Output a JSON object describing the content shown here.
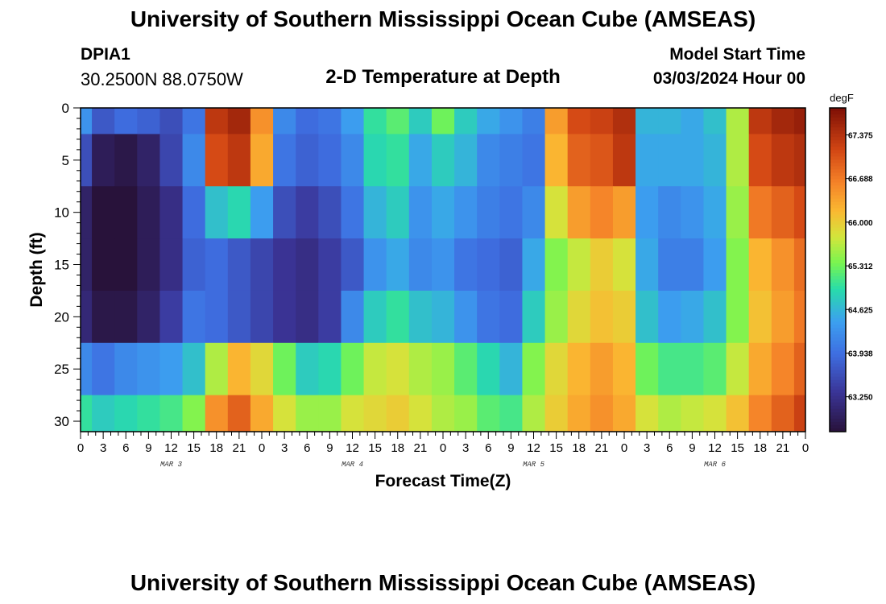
{
  "header": {
    "title": "University of Southern Mississippi Ocean Cube (AMSEAS)",
    "station_id": "DPIA1",
    "coords": "30.2500N  88.0750W",
    "subtitle": "2-D Temperature at Depth",
    "model_start_label": "Model Start Time",
    "model_start_value": "03/03/2024 Hour 00",
    "footer_title": "University of Southern Mississippi Ocean Cube (AMSEAS)"
  },
  "chart_data": {
    "type": "heatmap",
    "title": "2-D Temperature at Depth",
    "xlabel": "Forecast Time(Z)",
    "ylabel": "Depth (ft)",
    "colorbar_label": "degF",
    "x_ticks": [
      "0",
      "3",
      "6",
      "9",
      "12",
      "15",
      "18",
      "21",
      "0",
      "3",
      "6",
      "9",
      "12",
      "15",
      "18",
      "21",
      "0",
      "3",
      "6",
      "9",
      "12",
      "15",
      "18",
      "21",
      "0",
      "3",
      "6",
      "9",
      "12",
      "15",
      "18",
      "21",
      "0"
    ],
    "x_range_hours": [
      0,
      96
    ],
    "date_labels": [
      {
        "label": "MAR 3",
        "hour": 12
      },
      {
        "label": "MAR 4",
        "hour": 36
      },
      {
        "label": "MAR 5",
        "hour": 60
      },
      {
        "label": "MAR 6",
        "hour": 84
      }
    ],
    "y_ticks": [
      0,
      5,
      10,
      15,
      20,
      25,
      30
    ],
    "y_range_ft": [
      0,
      31
    ],
    "colorbar_ticks": [
      "67.375",
      "66.688",
      "66.000",
      "65.312",
      "64.625",
      "63.938",
      "63.250"
    ],
    "value_range": [
      62.7,
      67.8
    ],
    "hours": [
      0,
      3,
      6,
      9,
      12,
      15,
      18,
      21,
      24,
      27,
      30,
      33,
      36,
      39,
      42,
      45,
      48,
      51,
      54,
      57,
      60,
      63,
      66,
      69,
      72,
      75,
      78,
      81,
      84,
      87,
      90,
      93,
      96
    ],
    "depths": [
      0,
      5,
      10,
      15,
      20,
      25,
      30
    ],
    "series": [
      {
        "name": "depth 0 ft",
        "values": [
          64.3,
          63.7,
          63.9,
          63.8,
          63.6,
          64.0,
          67.3,
          67.5,
          66.5,
          64.2,
          63.9,
          64.0,
          64.4,
          65.0,
          65.2,
          64.8,
          65.3,
          64.8,
          64.5,
          64.3,
          64.1,
          66.4,
          67.1,
          67.2,
          67.4,
          64.6,
          64.6,
          64.5,
          64.7,
          65.6,
          67.3,
          67.5,
          67.6
        ]
      },
      {
        "name": "depth 5 ft",
        "values": [
          63.6,
          62.9,
          62.8,
          63.0,
          63.5,
          64.2,
          67.1,
          67.3,
          66.3,
          64.0,
          63.8,
          63.9,
          64.2,
          64.9,
          65.0,
          64.5,
          64.8,
          64.6,
          64.2,
          64.1,
          64.0,
          66.2,
          66.9,
          67.0,
          67.3,
          64.5,
          64.5,
          64.5,
          64.6,
          65.6,
          67.1,
          67.3,
          67.4
        ]
      },
      {
        "name": "depth 10 ft",
        "values": [
          63.0,
          62.7,
          62.7,
          62.9,
          63.2,
          63.9,
          64.7,
          64.9,
          64.4,
          63.6,
          63.4,
          63.6,
          64.0,
          64.6,
          64.8,
          64.3,
          64.5,
          64.3,
          64.1,
          64.0,
          64.2,
          65.8,
          66.4,
          66.6,
          66.4,
          64.4,
          64.2,
          64.3,
          64.5,
          65.5,
          66.7,
          66.9,
          67.1
        ]
      },
      {
        "name": "depth 15 ft",
        "values": [
          63.0,
          62.7,
          62.7,
          62.9,
          63.2,
          63.8,
          63.9,
          63.7,
          63.5,
          63.3,
          63.2,
          63.4,
          63.7,
          64.3,
          64.5,
          64.2,
          64.3,
          64.0,
          63.9,
          63.8,
          64.5,
          65.4,
          65.7,
          66.0,
          65.8,
          64.5,
          64.1,
          64.1,
          64.4,
          65.4,
          66.2,
          66.5,
          66.8
        ]
      },
      {
        "name": "depth 20 ft",
        "values": [
          63.1,
          62.8,
          62.8,
          63.0,
          63.4,
          64.0,
          63.9,
          63.7,
          63.5,
          63.3,
          63.2,
          63.4,
          64.2,
          64.8,
          65.0,
          64.7,
          64.6,
          64.3,
          64.0,
          63.9,
          64.8,
          65.5,
          65.9,
          66.1,
          66.0,
          64.7,
          64.4,
          64.5,
          64.7,
          65.4,
          66.1,
          66.4,
          66.7
        ]
      },
      {
        "name": "depth 25 ft",
        "values": [
          64.2,
          64.0,
          64.2,
          64.3,
          64.4,
          64.7,
          65.6,
          66.2,
          65.9,
          65.3,
          64.8,
          64.9,
          65.3,
          65.7,
          65.8,
          65.6,
          65.5,
          65.2,
          64.9,
          64.6,
          65.4,
          65.9,
          66.2,
          66.4,
          66.2,
          65.3,
          65.1,
          65.1,
          65.2,
          65.7,
          66.3,
          66.6,
          66.9
        ]
      },
      {
        "name": "depth 30 ft",
        "values": [
          65.0,
          64.8,
          64.9,
          65.0,
          65.1,
          65.4,
          66.5,
          66.9,
          66.3,
          65.8,
          65.5,
          65.5,
          65.8,
          65.9,
          66.0,
          65.8,
          65.6,
          65.5,
          65.2,
          65.1,
          65.6,
          66.0,
          66.3,
          66.5,
          66.3,
          65.8,
          65.6,
          65.7,
          65.8,
          66.1,
          66.6,
          66.9,
          67.2
        ]
      }
    ]
  }
}
